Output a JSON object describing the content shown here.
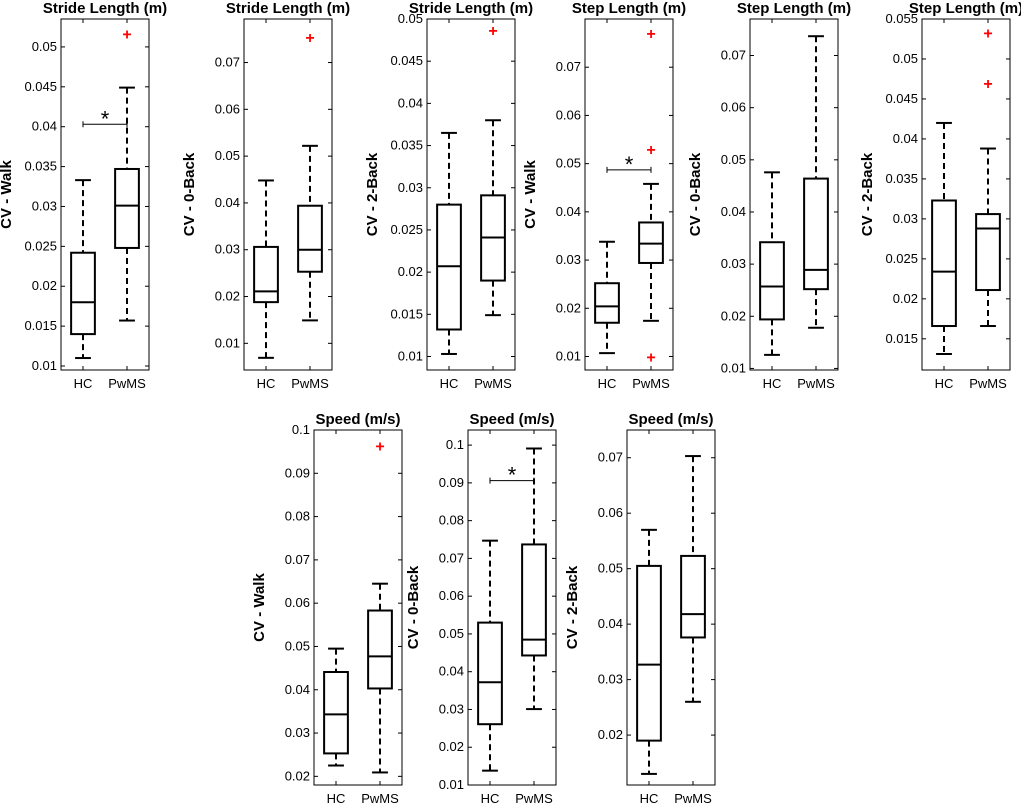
{
  "figure": {
    "background": "#ffffff",
    "outlier_color": "#ff0000"
  },
  "chart_data": [
    {
      "type": "box",
      "title": "Stride Length (m)",
      "ylabel": "CV - Walk",
      "ylim": [
        0.0095,
        0.0535
      ],
      "yticks": [
        0.01,
        0.015,
        0.02,
        0.025,
        0.03,
        0.035,
        0.04,
        0.045,
        0.05
      ],
      "ytick_labels": [
        "0.01",
        "0.015",
        "0.02",
        "0.025",
        "0.03",
        "0.035",
        "0.04",
        "0.045",
        "0.05"
      ],
      "categories": [
        "HC",
        "PwMS"
      ],
      "boxes": [
        {
          "group": "HC",
          "whisker_low": 0.011,
          "q1": 0.014,
          "median": 0.018,
          "q3": 0.0242,
          "whisker_high": 0.0333,
          "outliers": []
        },
        {
          "group": "PwMS",
          "whisker_low": 0.0157,
          "q1": 0.0248,
          "median": 0.0301,
          "q3": 0.0347,
          "whisker_high": 0.0449,
          "outliers": [
            0.0517
          ]
        }
      ],
      "significance": {
        "y": 0.0403,
        "label": "*"
      }
    },
    {
      "type": "box",
      "title": "Stride Length (m)",
      "ylabel": "CV - 0-Back",
      "ylim": [
        0.0043,
        0.0793
      ],
      "yticks": [
        0.01,
        0.02,
        0.03,
        0.04,
        0.05,
        0.06,
        0.07
      ],
      "ytick_labels": [
        "0.01",
        "0.02",
        "0.03",
        "0.04",
        "0.05",
        "0.06",
        "0.07"
      ],
      "categories": [
        "HC",
        "PwMS"
      ],
      "boxes": [
        {
          "group": "HC",
          "whisker_low": 0.0069,
          "q1": 0.0188,
          "median": 0.0211,
          "q3": 0.0306,
          "whisker_high": 0.0448,
          "outliers": []
        },
        {
          "group": "PwMS",
          "whisker_low": 0.0149,
          "q1": 0.0253,
          "median": 0.03,
          "q3": 0.0394,
          "whisker_high": 0.0522,
          "outliers": [
            0.0755
          ]
        }
      ],
      "significance": null
    },
    {
      "type": "box",
      "title": "Stride Length (m)",
      "ylabel": "CV - 2-Back",
      "ylim": [
        0.0084,
        0.05
      ],
      "yticks": [
        0.01,
        0.015,
        0.02,
        0.025,
        0.03,
        0.035,
        0.04,
        0.045,
        0.05
      ],
      "ytick_labels": [
        "0.01",
        "0.015",
        "0.02",
        "0.025",
        "0.03",
        "0.035",
        "0.04",
        "0.045",
        "0.05"
      ],
      "categories": [
        "HC",
        "PwMS"
      ],
      "boxes": [
        {
          "group": "HC",
          "whisker_low": 0.0103,
          "q1": 0.0132,
          "median": 0.0207,
          "q3": 0.028,
          "whisker_high": 0.0365,
          "outliers": []
        },
        {
          "group": "PwMS",
          "whisker_low": 0.0149,
          "q1": 0.019,
          "median": 0.0241,
          "q3": 0.0291,
          "whisker_high": 0.038,
          "outliers": [
            0.0487
          ]
        }
      ],
      "significance": null
    },
    {
      "type": "box",
      "title": "Step Length (m)",
      "ylabel": "CV - Walk",
      "ylim": [
        0.0072,
        0.08
      ],
      "yticks": [
        0.01,
        0.02,
        0.03,
        0.04,
        0.05,
        0.06,
        0.07
      ],
      "ytick_labels": [
        "0.01",
        "0.02",
        "0.03",
        "0.04",
        "0.05",
        "0.06",
        "0.07"
      ],
      "categories": [
        "HC",
        "PwMS"
      ],
      "boxes": [
        {
          "group": "HC",
          "whisker_low": 0.0107,
          "q1": 0.017,
          "median": 0.0204,
          "q3": 0.0252,
          "whisker_high": 0.0338,
          "outliers": []
        },
        {
          "group": "PwMS",
          "whisker_low": 0.0174,
          "q1": 0.0294,
          "median": 0.0334,
          "q3": 0.0378,
          "whisker_high": 0.0458,
          "outliers": [
            0.0771,
            0.053,
            0.01
          ]
        }
      ],
      "significance": {
        "y": 0.0487,
        "label": "*"
      }
    },
    {
      "type": "box",
      "title": "Step Length (m)",
      "ylabel": "CV - 0-Back",
      "ylim": [
        0.0097,
        0.077
      ],
      "yticks": [
        0.01,
        0.02,
        0.03,
        0.04,
        0.05,
        0.06,
        0.07
      ],
      "ytick_labels": [
        "0.01",
        "0.02",
        "0.03",
        "0.04",
        "0.05",
        "0.06",
        "0.07"
      ],
      "categories": [
        "HC",
        "PwMS"
      ],
      "boxes": [
        {
          "group": "HC",
          "whisker_low": 0.0126,
          "q1": 0.0194,
          "median": 0.0257,
          "q3": 0.0342,
          "whisker_high": 0.0476,
          "outliers": []
        },
        {
          "group": "PwMS",
          "whisker_low": 0.0178,
          "q1": 0.0252,
          "median": 0.0289,
          "q3": 0.0464,
          "whisker_high": 0.0737,
          "outliers": []
        }
      ],
      "significance": null
    },
    {
      "type": "box",
      "title": "Step Length (m)",
      "ylabel": "CV - 2-Back",
      "ylim": [
        0.0111,
        0.055
      ],
      "yticks": [
        0.015,
        0.02,
        0.025,
        0.03,
        0.035,
        0.04,
        0.045,
        0.05,
        0.055
      ],
      "ytick_labels": [
        "0.015",
        "0.02",
        "0.025",
        "0.03",
        "0.035",
        "0.04",
        "0.045",
        "0.05",
        "0.055"
      ],
      "categories": [
        "HC",
        "PwMS"
      ],
      "boxes": [
        {
          "group": "HC",
          "whisker_low": 0.0131,
          "q1": 0.0166,
          "median": 0.0234,
          "q3": 0.0323,
          "whisker_high": 0.042,
          "outliers": []
        },
        {
          "group": "PwMS",
          "whisker_low": 0.0166,
          "q1": 0.0211,
          "median": 0.0288,
          "q3": 0.0306,
          "whisker_high": 0.0388,
          "outliers": [
            0.0533,
            0.047
          ]
        }
      ],
      "significance": null
    },
    {
      "type": "box",
      "title": "Speed (m/s)",
      "ylabel": "CV - Walk",
      "ylim": [
        0.018,
        0.1
      ],
      "yticks": [
        0.02,
        0.03,
        0.04,
        0.05,
        0.06,
        0.07,
        0.08,
        0.09,
        0.1
      ],
      "ytick_labels": [
        "0.02",
        "0.03",
        "0.04",
        "0.05",
        "0.06",
        "0.07",
        "0.08",
        "0.09",
        "0.1"
      ],
      "categories": [
        "HC",
        "PwMS"
      ],
      "boxes": [
        {
          "group": "HC",
          "whisker_low": 0.0225,
          "q1": 0.0253,
          "median": 0.0343,
          "q3": 0.0441,
          "whisker_high": 0.0495,
          "outliers": []
        },
        {
          "group": "PwMS",
          "whisker_low": 0.0209,
          "q1": 0.0403,
          "median": 0.0477,
          "q3": 0.0583,
          "whisker_high": 0.0645,
          "outliers": [
            0.0964
          ]
        }
      ],
      "significance": null
    },
    {
      "type": "box",
      "title": "Speed (m/s)",
      "ylabel": "CV - 0-Back",
      "ylim": [
        0.01,
        0.104
      ],
      "yticks": [
        0.01,
        0.02,
        0.03,
        0.04,
        0.05,
        0.06,
        0.07,
        0.08,
        0.09,
        0.1
      ],
      "ytick_labels": [
        "0.01",
        "0.02",
        "0.03",
        "0.04",
        "0.05",
        "0.06",
        "0.07",
        "0.08",
        "0.09",
        "0.1"
      ],
      "categories": [
        "HC",
        "PwMS"
      ],
      "boxes": [
        {
          "group": "HC",
          "whisker_low": 0.0138,
          "q1": 0.0261,
          "median": 0.0372,
          "q3": 0.053,
          "whisker_high": 0.0747,
          "outliers": []
        },
        {
          "group": "PwMS",
          "whisker_low": 0.0301,
          "q1": 0.0443,
          "median": 0.0485,
          "q3": 0.0737,
          "whisker_high": 0.0991,
          "outliers": []
        }
      ],
      "significance": {
        "y": 0.0906,
        "label": "*"
      }
    },
    {
      "type": "box",
      "title": "Speed (m/s)",
      "ylabel": "CV - 2-Back",
      "ylim": [
        0.011,
        0.075
      ],
      "yticks": [
        0.02,
        0.03,
        0.04,
        0.05,
        0.06,
        0.07
      ],
      "ytick_labels": [
        "0.02",
        "0.03",
        "0.04",
        "0.05",
        "0.06",
        "0.07"
      ],
      "categories": [
        "HC",
        "PwMS"
      ],
      "boxes": [
        {
          "group": "HC",
          "whisker_low": 0.013,
          "q1": 0.019,
          "median": 0.0327,
          "q3": 0.0505,
          "whisker_high": 0.057,
          "outliers": []
        },
        {
          "group": "PwMS",
          "whisker_low": 0.026,
          "q1": 0.0376,
          "median": 0.0418,
          "q3": 0.0523,
          "whisker_high": 0.0703,
          "outliers": []
        }
      ],
      "significance": null
    }
  ]
}
